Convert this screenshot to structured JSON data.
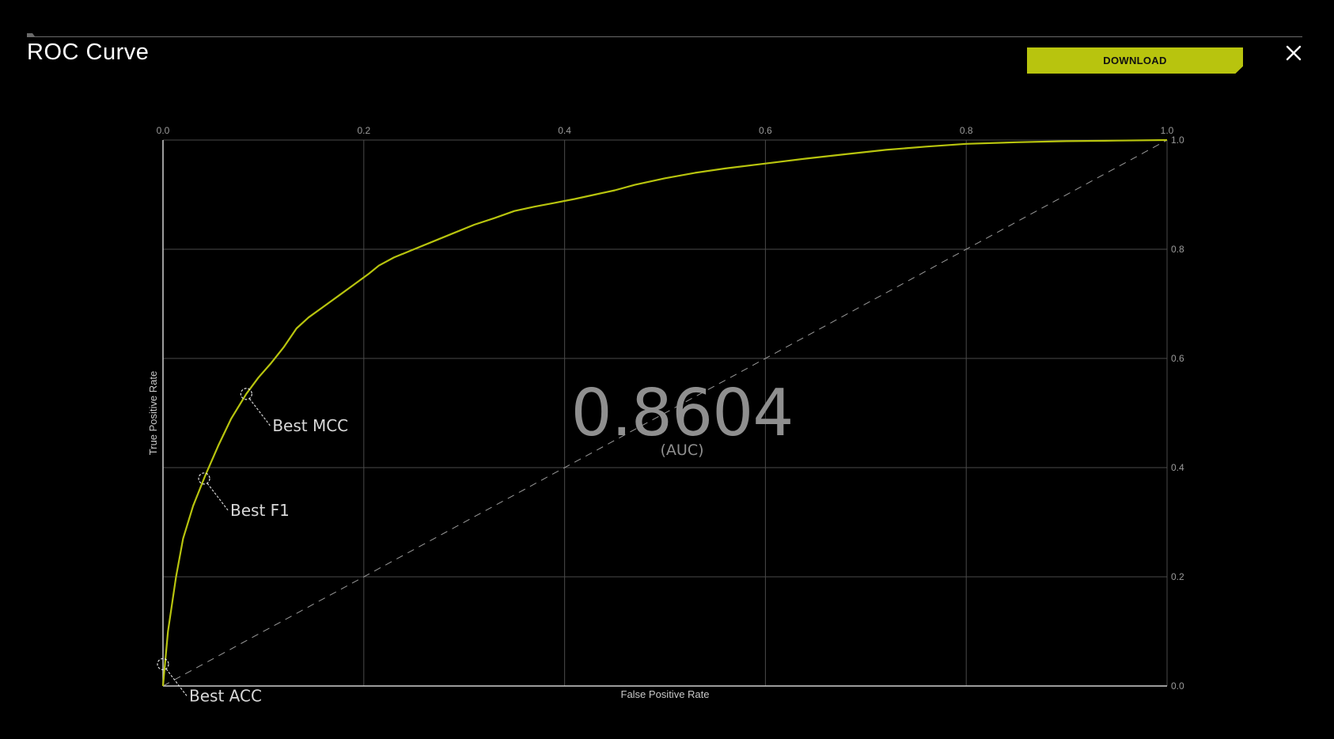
{
  "header": {
    "title": "ROC Curve",
    "download_label": "DOWNLOAD",
    "close_icon": "close-icon"
  },
  "colors": {
    "background": "#000000",
    "accent": "#b8c40e",
    "grid": "#4a4a4a",
    "diagonal": "#9a9a9a"
  },
  "chart_data": {
    "type": "line",
    "title": "",
    "xlabel": "False Positive Rate",
    "ylabel": "True Positive Rate",
    "xlim": [
      0,
      1
    ],
    "ylim": [
      0,
      1
    ],
    "x_ticks": [
      "0.0",
      "0.2",
      "0.4",
      "0.6",
      "0.8",
      "1.0"
    ],
    "y_ticks": [
      "0.0",
      "0.2",
      "0.4",
      "0.6",
      "0.8",
      "1.0"
    ],
    "x_tick_position": "top",
    "y_tick_position": "right",
    "grid": true,
    "auc": "0.8604",
    "auc_label": "(AUC)",
    "series": [
      {
        "color": "#b8c40e",
        "x": [
          0,
          0.005,
          0.013,
          0.02,
          0.03,
          0.042,
          0.055,
          0.068,
          0.083,
          0.095,
          0.107,
          0.12,
          0.133,
          0.145,
          0.16,
          0.175,
          0.19,
          0.205,
          0.215,
          0.23,
          0.25,
          0.27,
          0.29,
          0.31,
          0.33,
          0.35,
          0.37,
          0.39,
          0.41,
          0.43,
          0.45,
          0.47,
          0.5,
          0.53,
          0.56,
          0.6,
          0.64,
          0.68,
          0.72,
          0.76,
          0.8,
          0.85,
          0.9,
          0.95,
          1.0
        ],
        "y": [
          0,
          0.1,
          0.2,
          0.27,
          0.33,
          0.385,
          0.44,
          0.49,
          0.535,
          0.565,
          0.59,
          0.62,
          0.655,
          0.675,
          0.695,
          0.715,
          0.735,
          0.755,
          0.77,
          0.785,
          0.8,
          0.815,
          0.83,
          0.845,
          0.857,
          0.87,
          0.878,
          0.885,
          0.892,
          0.9,
          0.908,
          0.918,
          0.93,
          0.94,
          0.948,
          0.957,
          0.966,
          0.974,
          0.982,
          0.988,
          0.993,
          0.996,
          0.998,
          0.999,
          1.0
        ]
      },
      {
        "style": "dashed",
        "color": "#9a9a9a",
        "x": [
          0,
          1
        ],
        "y": [
          0,
          1
        ]
      }
    ],
    "markers": [
      {
        "label": "Best ACC",
        "x": 0.0,
        "y": 0.04
      },
      {
        "label": "Best F1",
        "x": 0.041,
        "y": 0.38
      },
      {
        "label": "Best MCC",
        "x": 0.083,
        "y": 0.535
      }
    ]
  }
}
